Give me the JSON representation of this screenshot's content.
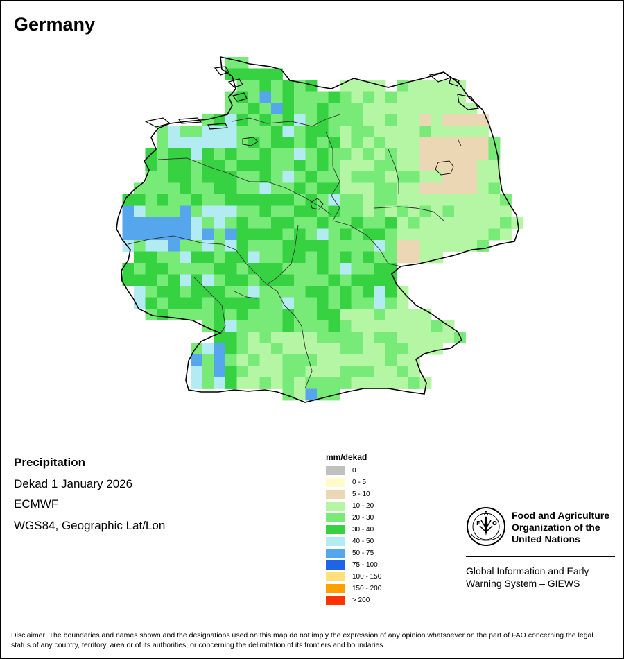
{
  "title": "Germany",
  "map_info": {
    "variable": "Precipitation",
    "period": "Dekad 1 January 2026",
    "source": "ECMWF",
    "projection": "WGS84, Geographic Lat/Lon"
  },
  "legend": {
    "title": "mm/dekad",
    "classes": [
      {
        "label": "0",
        "color": "#c0c0c0"
      },
      {
        "label": "0 - 5",
        "color": "#fffcc9"
      },
      {
        "label": "5 - 10",
        "color": "#ecd7b4"
      },
      {
        "label": "10 - 20",
        "color": "#b4f6a4"
      },
      {
        "label": "20 - 30",
        "color": "#78ea78"
      },
      {
        "label": "30 - 40",
        "color": "#36d242"
      },
      {
        "label": "40 - 50",
        "color": "#b2ecf2"
      },
      {
        "label": "50 - 75",
        "color": "#56a6ee"
      },
      {
        "label": "75 - 100",
        "color": "#1e64e6"
      },
      {
        "label": "100 - 150",
        "color": "#ffe07a"
      },
      {
        "label": "150 - 200",
        "color": "#ffa000"
      },
      {
        "label": "> 200",
        "color": "#ff3200"
      }
    ]
  },
  "organization": {
    "name_line1": "Food and Agriculture",
    "name_line2": "Organization of the",
    "name_line3": "United Nations",
    "system_line1": "Global Information and Early",
    "system_line2": "Warning System – GIEWS"
  },
  "disclaimer": "Disclaimer: The boundaries and names shown and the designations used on this map do not imply the expression of any opinion whatsoever on the part of FAO concerning the legal status of any country, territory, area or of its authorities, or concerning the delimitation of its frontiers and boundaries."
}
